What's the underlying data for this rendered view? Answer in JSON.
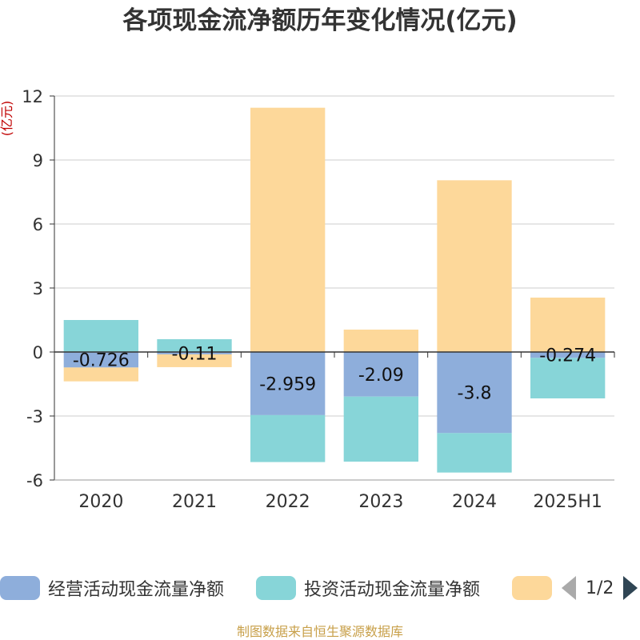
{
  "chart_data": {
    "type": "bar",
    "title": "各项现金流净额历年变化情况(亿元)",
    "ylabel": "(亿元)",
    "xlabel": "",
    "categories": [
      "2020",
      "2021",
      "2022",
      "2023",
      "2024",
      "2025H1"
    ],
    "ylim": [
      -6,
      12
    ],
    "yticks": [
      -6,
      -3,
      0,
      3,
      6,
      9,
      12
    ],
    "grid": true,
    "stacked": true,
    "legend_position": "bottom",
    "series": [
      {
        "name": "经营活动现金流量净额",
        "color": "#8eaedb",
        "values": [
          -0.726,
          -0.11,
          -2.959,
          -2.09,
          -3.8,
          -0.274
        ],
        "labels": [
          "-0.726",
          "-0.11",
          "-2.959",
          "-2.09",
          "-3.8",
          "-0.274"
        ]
      },
      {
        "name": "投资活动现金流量净额",
        "color": "#87d5d8",
        "values": [
          1.5,
          0.6,
          -2.2,
          -3.05,
          -1.85,
          -1.9
        ]
      },
      {
        "name": "",
        "color": "#fdd89a",
        "values": [
          -0.65,
          -0.6,
          11.45,
          1.05,
          8.05,
          2.55
        ]
      }
    ]
  },
  "legend": {
    "page": "1/2"
  },
  "source": "制图数据来自恒生聚源数据库"
}
